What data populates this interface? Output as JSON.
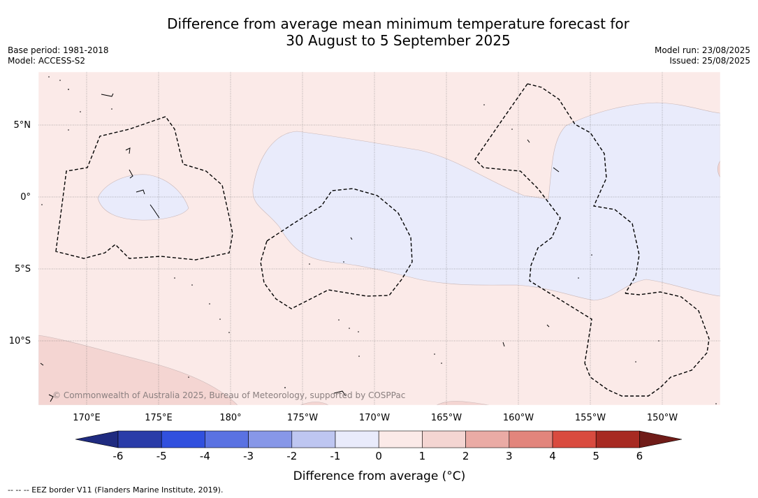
{
  "title": {
    "line1": "Difference from average mean minimum temperature forecast for",
    "line2": "30 August to 5 September 2025"
  },
  "meta_left": {
    "base_period": "Base period: 1981-2018",
    "model": "Model: ACCESS-S2"
  },
  "meta_right": {
    "model_run": "Model run: 23/08/2025",
    "issued": "Issued: 25/08/2025"
  },
  "map": {
    "lat_labels": [
      "5°N",
      "0°",
      "5°S",
      "10°S"
    ],
    "lon_labels": [
      "170°E",
      "175°E",
      "180°",
      "175°W",
      "170°W",
      "165°W",
      "160°W",
      "155°W",
      "150°W"
    ],
    "copyright": "© Commonwealth of Australia 2025, Bureau of Meteorology, supported by COSPPac",
    "colors": {
      "near_zero_warm": "#fbeae8",
      "near_zero_cool": "#e9ebfb",
      "warm_1_2": "#f4d5d2"
    }
  },
  "colorbar": {
    "ticks": [
      "-6",
      "-5",
      "-4",
      "-3",
      "-2",
      "-1",
      "0",
      "1",
      "2",
      "3",
      "4",
      "5",
      "6"
    ],
    "colors": [
      "#1f2b80",
      "#2a3ca8",
      "#3150de",
      "#5a72e2",
      "#8797e8",
      "#bec6f1",
      "#e9ebfb",
      "#fbeae8",
      "#f4d5d2",
      "#eaaba5",
      "#e2857c",
      "#d94b3f",
      "#a72a22",
      "#701c18"
    ],
    "title": "Difference from average (°C)"
  },
  "footnote": "--  --  -- EEZ border V11 (Flanders Marine Institute, 2019)."
}
